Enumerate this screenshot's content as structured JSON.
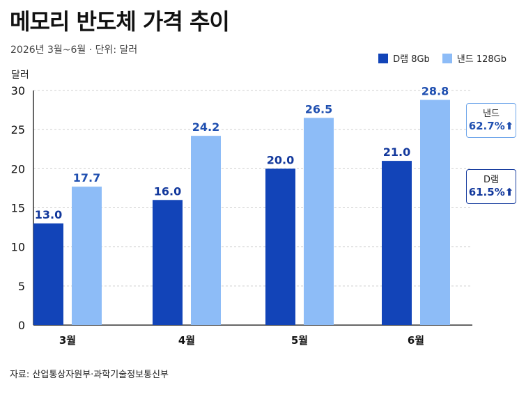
{
  "title": "메모리 반도체 가격 추이",
  "subtitle": "2026년 3월~6월 · 단위: 달러",
  "source": "자료: 산업통상자원부·과학기술정보통신부",
  "colors": {
    "dram": "#1244b8",
    "nand": "#8dbcf7"
  },
  "badges": {
    "nand": {
      "label": "낸드",
      "value": "62.7%",
      "arrow": "⬆"
    },
    "dram": {
      "label": "D램",
      "value": "61.5%",
      "arrow": "⬆"
    }
  },
  "chart_data": {
    "type": "bar",
    "ylabel": "달러",
    "ylim": [
      0,
      30
    ],
    "yticks": [
      0,
      5,
      10,
      15,
      20,
      25,
      30
    ],
    "categories": [
      "3월",
      "4월",
      "5월",
      "6월"
    ],
    "legend_position": "top-right",
    "grid": true,
    "series": [
      {
        "name": "D램 8Gb",
        "values": [
          13.0,
          16.0,
          20.0,
          21.0
        ],
        "labels": [
          "13.0",
          "16.0",
          "20.0",
          "21.0"
        ]
      },
      {
        "name": "낸드 128Gb",
        "values": [
          17.7,
          24.2,
          26.5,
          28.8
        ],
        "labels": [
          "17.7",
          "24.2",
          "26.5",
          "28.8"
        ]
      }
    ]
  }
}
